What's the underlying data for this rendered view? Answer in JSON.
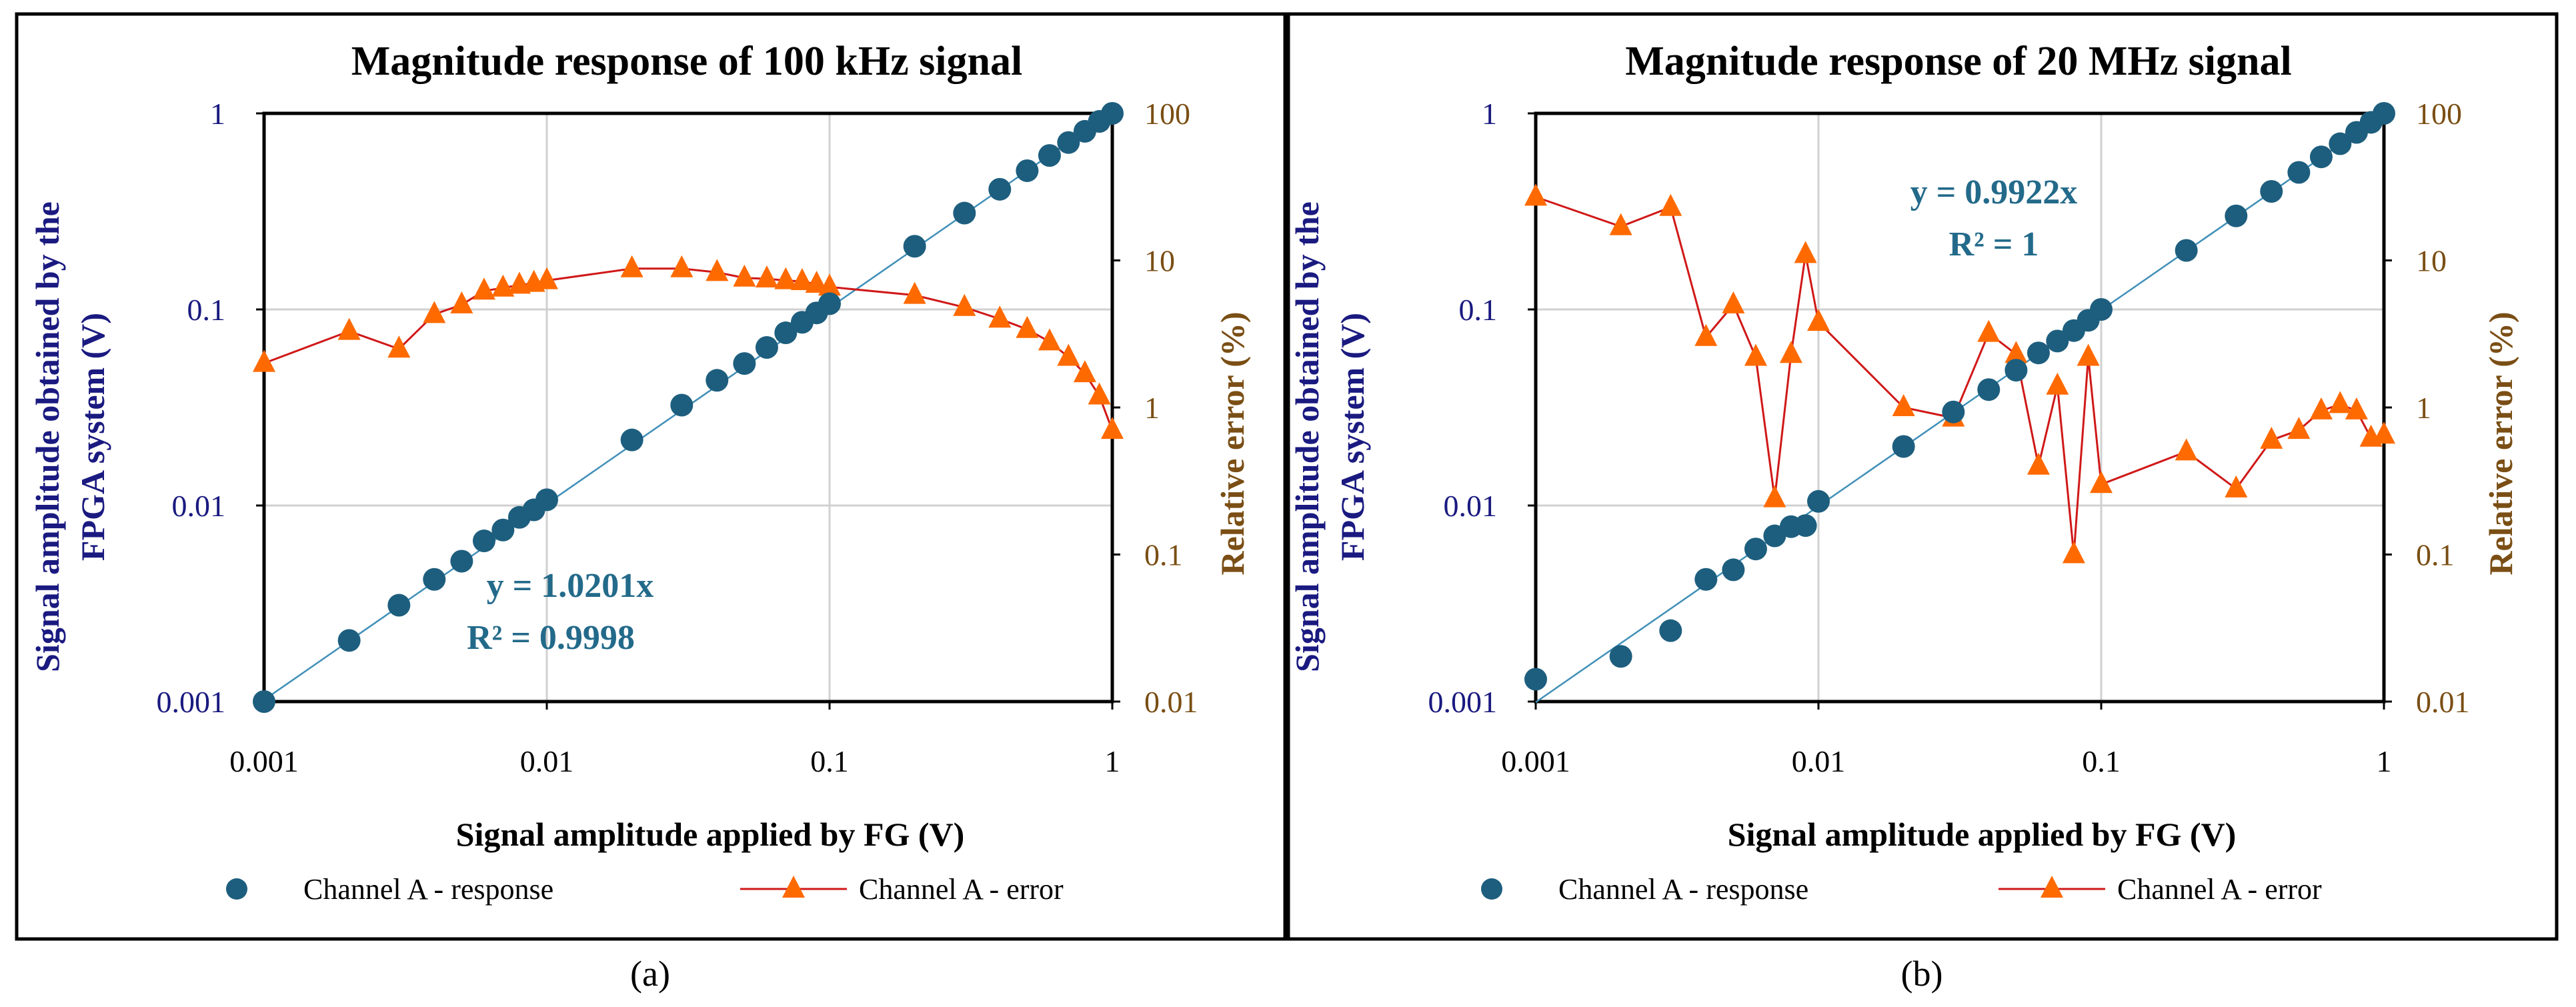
{
  "colors": {
    "response": "#1d5e7e",
    "trend": "#3f8fb8",
    "error_line": "#d01818",
    "error_marker": "#ff6a00",
    "left_axis": "#1a1a80",
    "right_axis": "#7a4e14"
  },
  "chart_data": [
    {
      "type": "scatter",
      "title": "Magnitude response of 100 kHz signal",
      "caption": "(a)",
      "xlabel": "Signal amplitude applied by FG (V)",
      "ylabel_lines": [
        "Signal amplitude obtained by the",
        "FPGA system (V)"
      ],
      "y2label": "Relative error (%)",
      "xscale": "log",
      "xlim": [
        0.001,
        1
      ],
      "ylim": [
        0.001,
        1
      ],
      "y2lim": [
        0.01,
        100
      ],
      "x_ticks": [
        "0.001",
        "0.01",
        "0.1",
        "1"
      ],
      "y_ticks": [
        "0.001",
        "0.01",
        "0.1",
        "1"
      ],
      "y2_ticks": [
        "0.01",
        "0.1",
        "1",
        "10",
        "100"
      ],
      "grid": true,
      "trendline": {
        "slope": 1.0201,
        "equation": "y = 1.0201x",
        "r2": "R² = 0.9998"
      },
      "x": [
        0.001,
        0.002,
        0.003,
        0.004,
        0.005,
        0.006,
        0.007,
        0.008,
        0.009,
        0.01,
        0.02,
        0.03,
        0.04,
        0.05,
        0.06,
        0.07,
        0.08,
        0.09,
        0.1,
        0.2,
        0.3,
        0.4,
        0.5,
        0.6,
        0.7,
        0.8,
        0.9,
        1
      ],
      "series": [
        {
          "name": "Channel A - response",
          "axis": "left",
          "marker": "circle",
          "values": [
            0.001,
            0.00205,
            0.0031,
            0.0042,
            0.0052,
            0.0066,
            0.0075,
            0.0087,
            0.0095,
            0.0107,
            0.0216,
            0.0325,
            0.0435,
            0.053,
            0.064,
            0.076,
            0.086,
            0.096,
            0.107,
            0.21,
            0.31,
            0.41,
            0.51,
            0.61,
            0.71,
            0.81,
            0.91,
            1.0
          ]
        },
        {
          "name": "Channel A - error",
          "axis": "right",
          "marker": "triangle",
          "values": [
            2.0,
            3.3,
            2.5,
            4.3,
            5.0,
            6.2,
            6.5,
            6.8,
            7.0,
            7.3,
            8.8,
            8.8,
            8.3,
            7.6,
            7.5,
            7.3,
            7.2,
            6.9,
            6.6,
            5.8,
            4.8,
            4.0,
            3.4,
            2.8,
            2.2,
            1.7,
            1.2,
            0.7
          ]
        }
      ],
      "legend": {
        "placement": "bottom",
        "entries": [
          "Channel A - response",
          "Channel A - error"
        ]
      }
    },
    {
      "type": "scatter",
      "title": "Magnitude response of 20 MHz signal",
      "caption": "(b)",
      "xlabel": "Signal amplitude applied by FG (V)",
      "ylabel_lines": [
        "Signal amplitude obtained by the",
        "FPGA system (V)"
      ],
      "y2label": "Relative error (%)",
      "xscale": "log",
      "xlim": [
        0.001,
        1
      ],
      "ylim": [
        0.001,
        1
      ],
      "y2lim": [
        0.01,
        100
      ],
      "x_ticks": [
        "0.001",
        "0.01",
        "0.1",
        "1"
      ],
      "y_ticks": [
        "0.001",
        "0.01",
        "0.1",
        "1"
      ],
      "y2_ticks": [
        "0.01",
        "0.1",
        "1",
        "10",
        "100"
      ],
      "grid": true,
      "trendline": {
        "slope": 0.9922,
        "equation": "y = 0.9922x",
        "r2": "R² = 1"
      },
      "x": [
        0.001,
        0.002,
        0.003,
        0.004,
        0.005,
        0.006,
        0.007,
        0.008,
        0.009,
        0.01,
        0.02,
        0.03,
        0.04,
        0.05,
        0.06,
        0.07,
        0.08,
        0.09,
        0.1,
        0.2,
        0.3,
        0.4,
        0.5,
        0.6,
        0.7,
        0.8,
        0.9,
        1
      ],
      "series": [
        {
          "name": "Channel A - response",
          "axis": "left",
          "marker": "circle",
          "values": [
            0.0013,
            0.0017,
            0.0023,
            0.0042,
            0.0047,
            0.006,
            0.007,
            0.0078,
            0.0079,
            0.0105,
            0.02,
            0.03,
            0.039,
            0.049,
            0.06,
            0.069,
            0.078,
            0.088,
            0.1,
            0.2,
            0.3,
            0.4,
            0.5,
            0.6,
            0.7,
            0.8,
            0.9,
            1.0
          ]
        },
        {
          "name": "Channel A - error",
          "axis": "right",
          "marker": "triangle",
          "values": [
            27,
            17,
            23,
            3.0,
            5.0,
            2.2,
            0.24,
            2.3,
            11,
            3.8,
            1.0,
            0.85,
            3.2,
            2.3,
            0.4,
            1.4,
            0.1,
            2.2,
            0.3,
            0.5,
            0.28,
            0.6,
            0.7,
            0.95,
            1.05,
            0.95,
            0.62,
            0.65
          ]
        }
      ],
      "legend": {
        "placement": "bottom",
        "entries": [
          "Channel A - response",
          "Channel A - error"
        ]
      }
    }
  ]
}
